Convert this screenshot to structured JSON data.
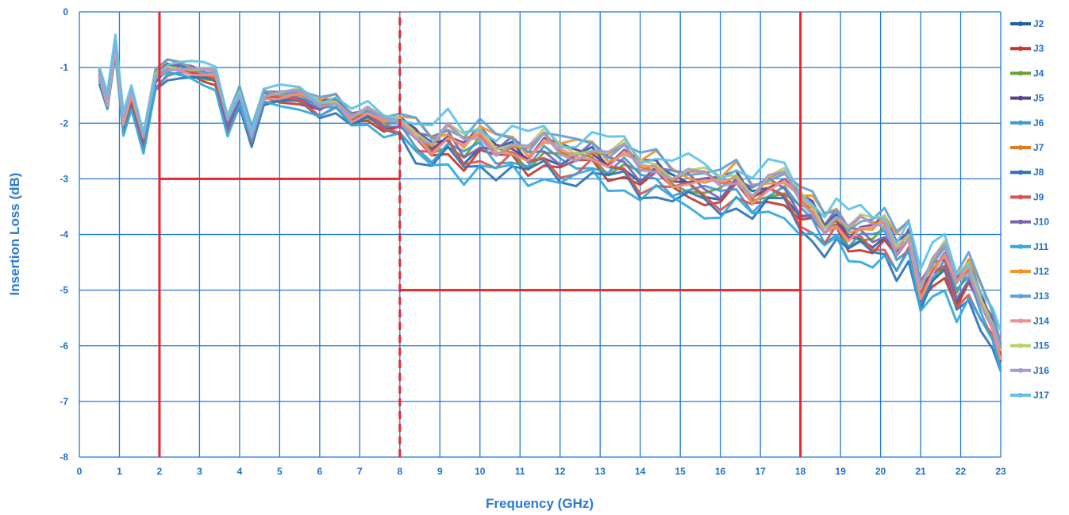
{
  "chart_data": {
    "type": "line",
    "title": "",
    "xlabel": "Frequency (GHz)",
    "ylabel": "Insertion Loss (dB)",
    "xlim": [
      0,
      23
    ],
    "ylim": [
      -8,
      0
    ],
    "xticks": [
      "0",
      "1",
      "2",
      "3",
      "4",
      "5",
      "6",
      "7",
      "8",
      "9",
      "10",
      "11",
      "12",
      "13",
      "14",
      "15",
      "16",
      "17",
      "18",
      "19",
      "20",
      "21",
      "22",
      "23"
    ],
    "yticks": [
      "0",
      "-1",
      "-2",
      "-3",
      "-4",
      "-5",
      "-6",
      "-7",
      "-8"
    ],
    "grid": true,
    "legend_position": "right",
    "grid_color": "#1f78d8",
    "limit_color": "#e8262c",
    "limit_lines": [
      {
        "kind": "vertical",
        "x": 2,
        "y_range": [
          -8,
          0
        ],
        "style": "solid"
      },
      {
        "kind": "vertical",
        "x": 8,
        "y_range": [
          -8,
          0
        ],
        "style": "dashed"
      },
      {
        "kind": "vertical",
        "x": 18,
        "y_range": [
          -8,
          0
        ],
        "style": "solid"
      },
      {
        "kind": "horizontal",
        "y": -3,
        "x_range": [
          2,
          8
        ],
        "style": "solid"
      },
      {
        "kind": "horizontal",
        "y": -5,
        "x_range": [
          8,
          18
        ],
        "style": "solid"
      }
    ],
    "x": [
      0.5,
      0.7,
      0.9,
      1.1,
      1.3,
      1.6,
      1.9,
      2.2,
      2.5,
      2.8,
      3.1,
      3.4,
      3.7,
      4.0,
      4.3,
      4.6,
      5.0,
      5.5,
      6.0,
      6.4,
      6.8,
      7.2,
      7.6,
      8.0,
      8.4,
      8.8,
      9.2,
      9.6,
      10.0,
      10.4,
      10.8,
      11.2,
      11.6,
      12.0,
      12.4,
      12.8,
      13.2,
      13.6,
      14.0,
      14.4,
      14.8,
      15.2,
      15.6,
      16.0,
      16.4,
      16.8,
      17.2,
      17.6,
      18.0,
      18.3,
      18.6,
      18.9,
      19.2,
      19.5,
      19.8,
      20.1,
      20.4,
      20.7,
      21.0,
      21.3,
      21.6,
      21.9,
      22.2,
      22.5,
      22.8,
      23.0
    ],
    "base_curve": [
      -1.1,
      -1.6,
      -0.6,
      -2.0,
      -1.5,
      -2.3,
      -1.2,
      -1.0,
      -1.0,
      -1.05,
      -1.1,
      -1.15,
      -2.0,
      -1.5,
      -2.2,
      -1.5,
      -1.5,
      -1.5,
      -1.7,
      -1.6,
      -1.9,
      -1.8,
      -2.0,
      -2.0,
      -2.2,
      -2.4,
      -2.2,
      -2.5,
      -2.3,
      -2.5,
      -2.4,
      -2.6,
      -2.4,
      -2.6,
      -2.6,
      -2.5,
      -2.7,
      -2.6,
      -2.9,
      -2.8,
      -3.0,
      -3.0,
      -3.1,
      -3.2,
      -3.0,
      -3.3,
      -3.1,
      -3.1,
      -3.5,
      -3.6,
      -3.9,
      -3.7,
      -4.0,
      -3.9,
      -4.0,
      -3.9,
      -4.3,
      -4.0,
      -5.0,
      -4.6,
      -4.4,
      -5.0,
      -4.7,
      -5.2,
      -5.6,
      -6.1
    ],
    "series": [
      {
        "name": "J2",
        "color": "#1f5f9e",
        "offset": -0.05,
        "phase": 0.0
      },
      {
        "name": "J3",
        "color": "#c0392b",
        "offset": -0.15,
        "phase": 0.7
      },
      {
        "name": "J4",
        "color": "#6e9e2f",
        "offset": -0.05,
        "phase": 1.4
      },
      {
        "name": "J5",
        "color": "#5a3e8f",
        "offset": 0.05,
        "phase": 2.1
      },
      {
        "name": "J6",
        "color": "#3d9ccf",
        "offset": -0.1,
        "phase": 2.8
      },
      {
        "name": "J7",
        "color": "#e07b22",
        "offset": 0.05,
        "phase": 3.5
      },
      {
        "name": "J8",
        "color": "#2a73b8",
        "offset": -0.25,
        "phase": 4.2
      },
      {
        "name": "J9",
        "color": "#d9534f",
        "offset": -0.15,
        "phase": 4.9
      },
      {
        "name": "J10",
        "color": "#7a64b0",
        "offset": 0.0,
        "phase": 5.6
      },
      {
        "name": "J11",
        "color": "#32a7db",
        "offset": -0.3,
        "phase": 0.35
      },
      {
        "name": "J12",
        "color": "#f0932b",
        "offset": 0.1,
        "phase": 1.05
      },
      {
        "name": "J13",
        "color": "#5f9fd6",
        "offset": 0.15,
        "phase": 1.75
      },
      {
        "name": "J14",
        "color": "#ef8f8f",
        "offset": 0.0,
        "phase": 2.45
      },
      {
        "name": "J15",
        "color": "#b5cf6b",
        "offset": 0.1,
        "phase": 3.15
      },
      {
        "name": "J16",
        "color": "#a89ad0",
        "offset": 0.05,
        "phase": 3.85
      },
      {
        "name": "J17",
        "color": "#61c1ea",
        "offset": 0.2,
        "phase": 4.55
      }
    ]
  }
}
